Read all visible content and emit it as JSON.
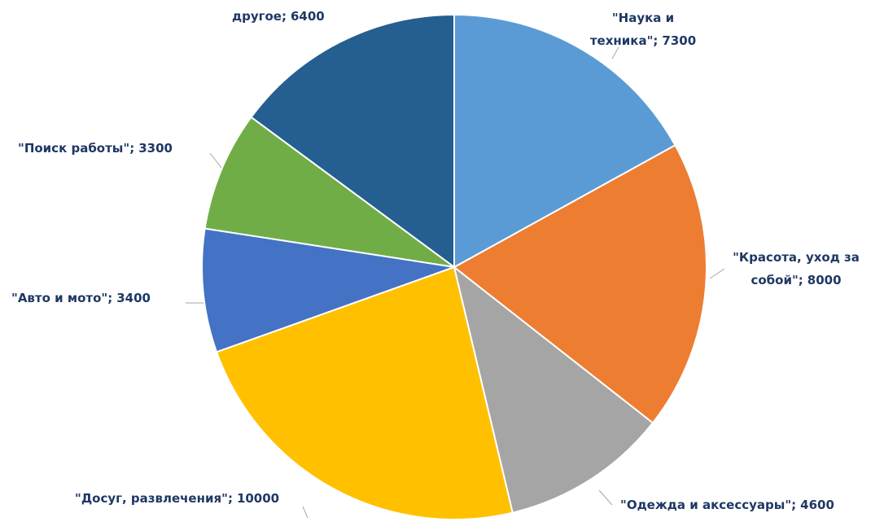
{
  "chart_data": {
    "type": "pie",
    "categories": [
      "\"Наука и техника\"",
      "\"Красота, уход за собой\"",
      "\"Одежда и аксессуары\"",
      "\"Досуг, развлечения\"",
      "\"Авто и мото\"",
      "\"Поиск работы\"",
      "другое"
    ],
    "values": [
      7300,
      8000,
      4600,
      10000,
      3400,
      3300,
      6400
    ],
    "colors": [
      "#5b9bd5",
      "#ed7d31",
      "#a5a5a5",
      "#ffc000",
      "#4472c4",
      "#70ad47",
      "#255e91"
    ],
    "label_separator": ";"
  }
}
